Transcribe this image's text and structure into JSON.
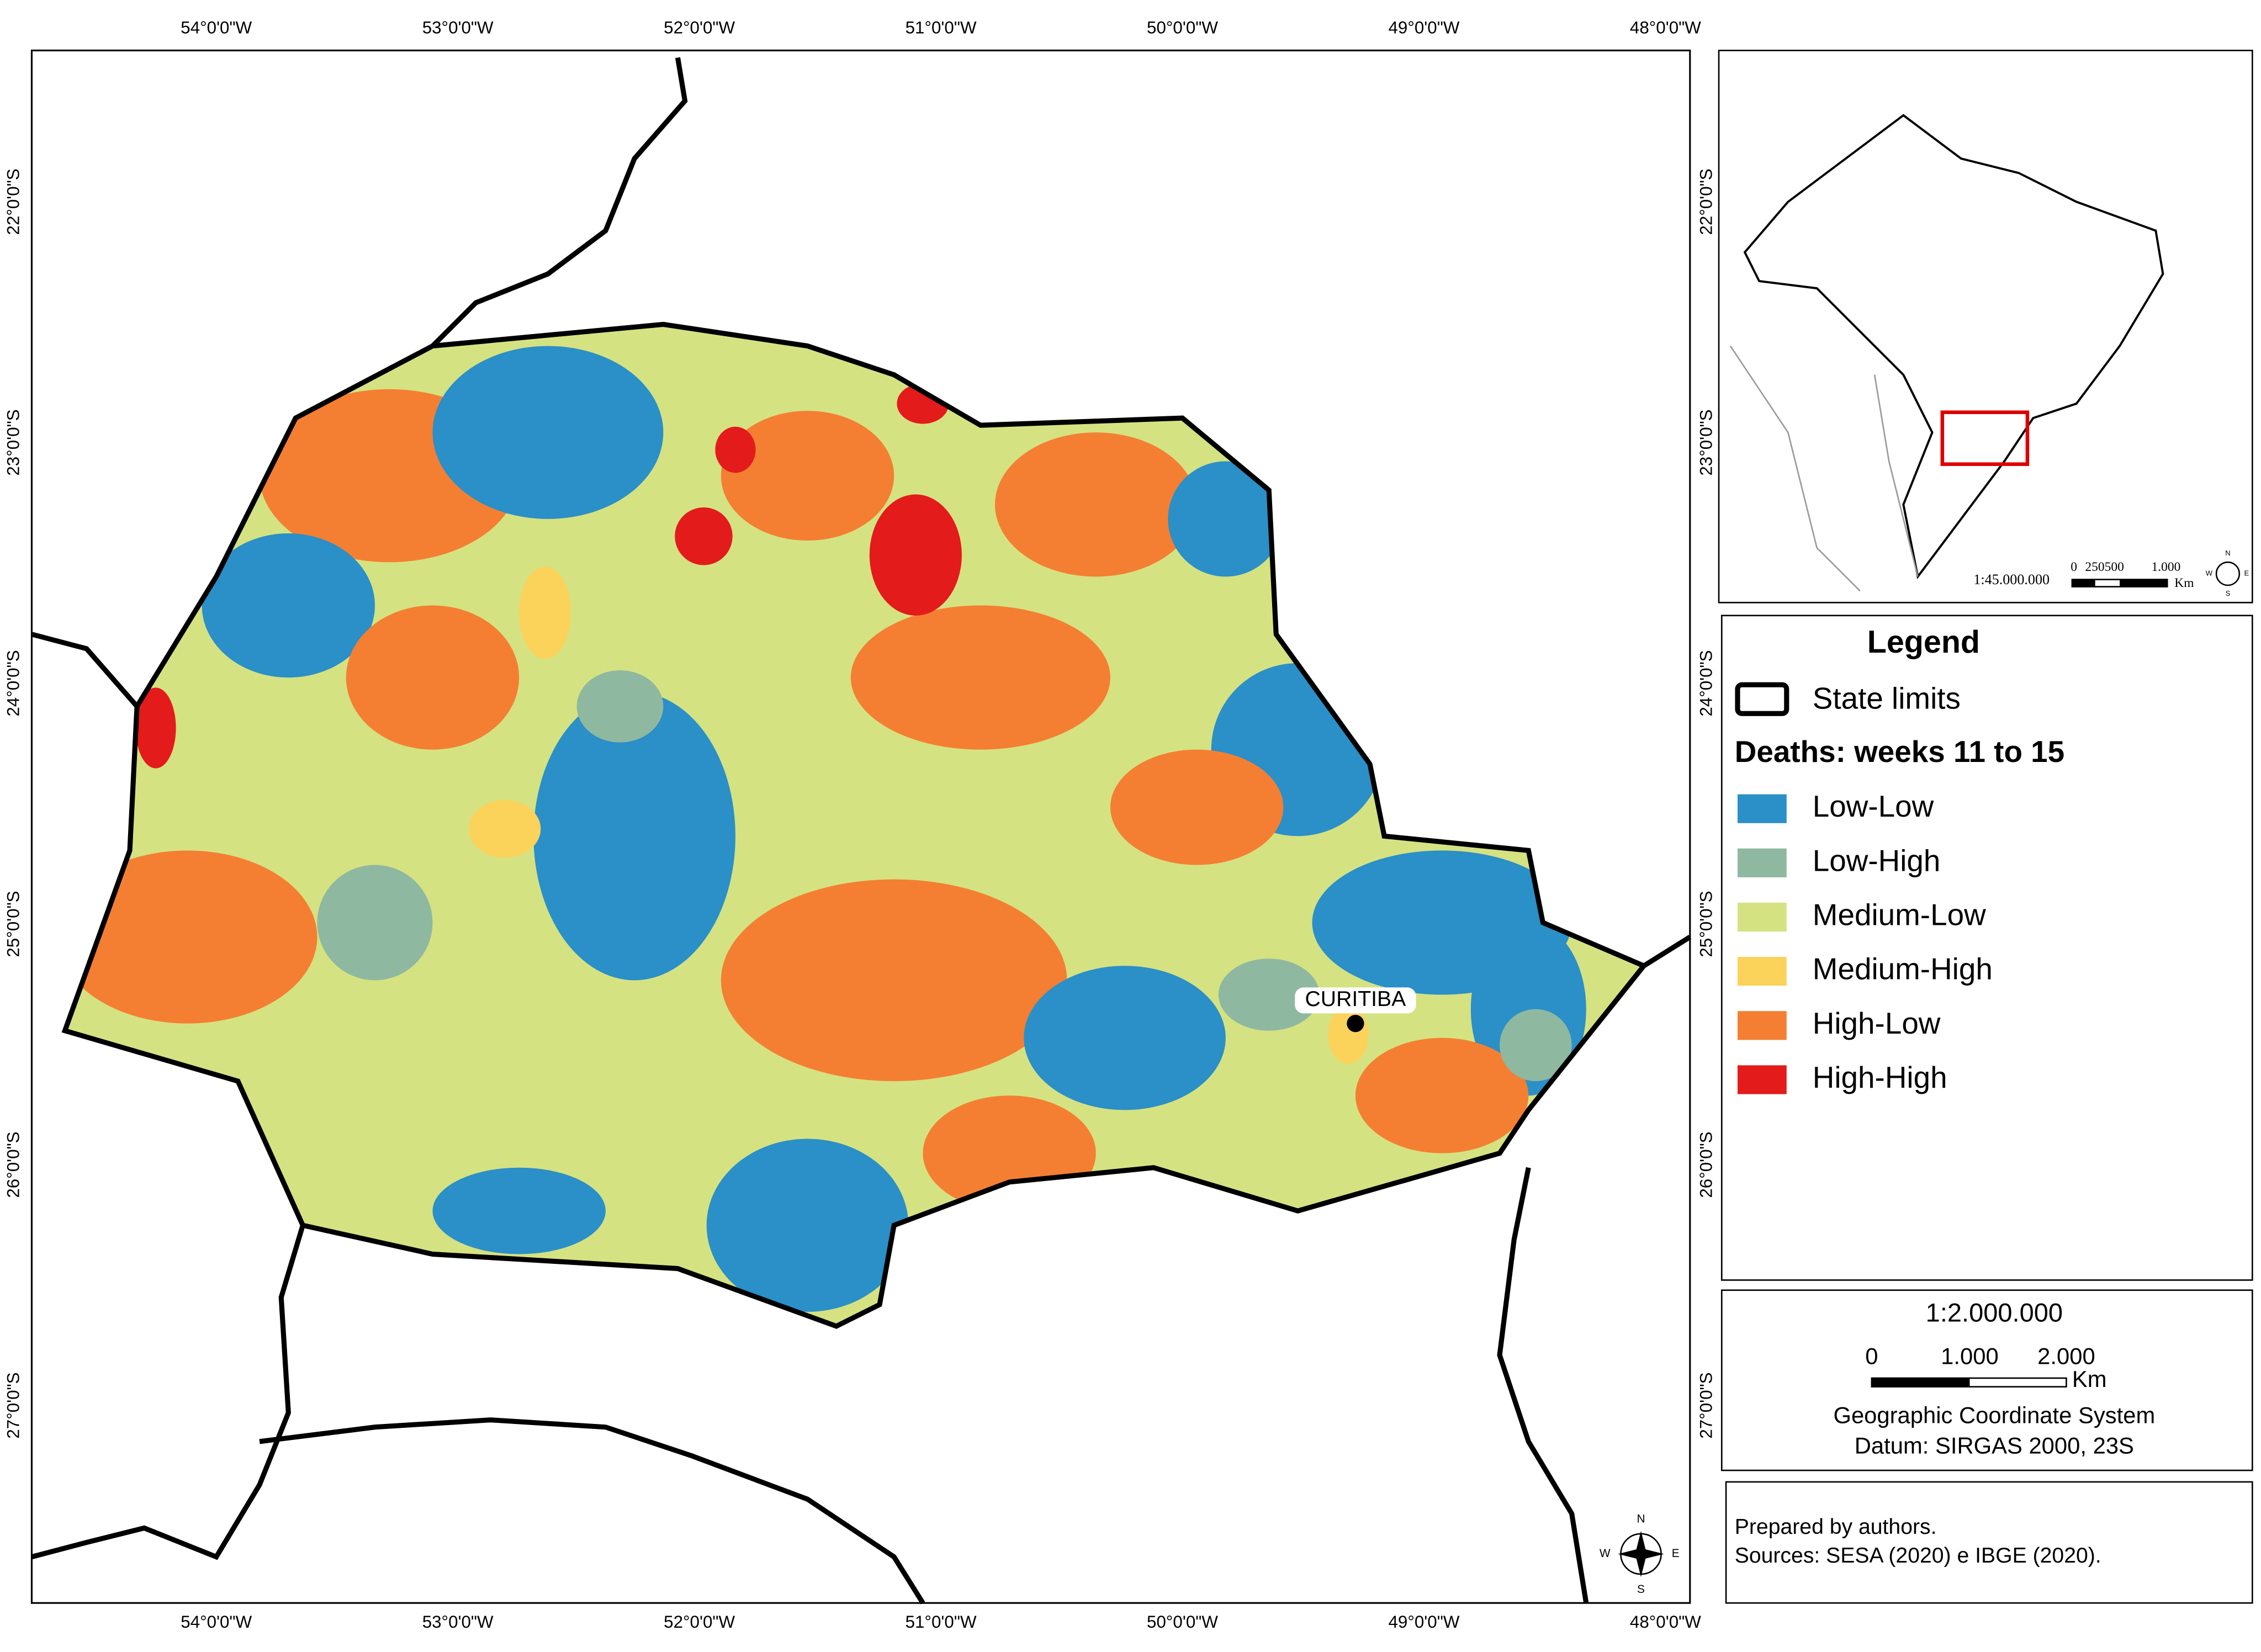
{
  "map": {
    "longitude_labels": [
      "54°0'0\"W",
      "53°0'0\"W",
      "52°0'0\"W",
      "51°0'0\"W",
      "50°0'0\"W",
      "49°0'0\"W",
      "48°0'0\"W"
    ],
    "latitude_labels": [
      "22°0'0\"S",
      "23°0'0\"S",
      "24°0'0\"S",
      "25°0'0\"S",
      "26°0'0\"S",
      "27°0'0\"S"
    ],
    "city": "CURITIBA",
    "compass": [
      "N",
      "E",
      "S",
      "W"
    ]
  },
  "inset": {
    "scale": "1:45.000.000",
    "scale_bar_labels": [
      "0",
      "250500",
      "1.000"
    ],
    "unit": "Km",
    "compass": [
      "N",
      "E",
      "S",
      "W"
    ]
  },
  "legend": {
    "title": "Legend",
    "state_limits": "State limits",
    "subtitle": "Deaths: weeks 11 to 15",
    "classes": [
      {
        "name": "Low-Low",
        "color": "#2b8fc8"
      },
      {
        "name": "Low-High",
        "color": "#8fb8a0"
      },
      {
        "name": "Medium-Low",
        "color": "#d5e282"
      },
      {
        "name": "Medium-High",
        "color": "#fbd25a"
      },
      {
        "name": "High-Low",
        "color": "#f47f32"
      },
      {
        "name": "High-High",
        "color": "#e31b1b"
      }
    ]
  },
  "scale_box": {
    "scale": "1:2.000.000",
    "bar_labels": [
      "0",
      "1.000",
      "2.000"
    ],
    "unit": "Km",
    "lines": [
      "Geographic Coordinate System",
      "Datum: SIRGAS 2000, 23S"
    ]
  },
  "credits": [
    "Prepared by authors.",
    "Sources: SESA (2020) e IBGE (2020)."
  ]
}
